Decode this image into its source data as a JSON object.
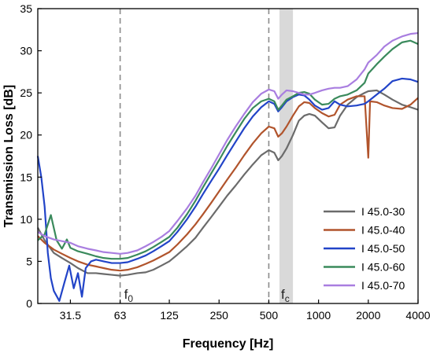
{
  "chart_data": {
    "type": "line",
    "title": "",
    "xlabel": "Frequency [Hz]",
    "ylabel": "Transmission Loss [dB]",
    "xscale": "log2",
    "xlim": [
      20,
      4000
    ],
    "ylim": [
      0,
      35
    ],
    "xticks": [
      {
        "value": 31.5,
        "label": "31.5"
      },
      {
        "value": 63,
        "label": "63"
      },
      {
        "value": 125,
        "label": "125"
      },
      {
        "value": 250,
        "label": "250"
      },
      {
        "value": 500,
        "label": "500"
      },
      {
        "value": 1000,
        "label": "1000"
      },
      {
        "value": 2000,
        "label": "2000"
      },
      {
        "value": 4000,
        "label": "4000"
      }
    ],
    "yticks": [
      0,
      5,
      10,
      15,
      20,
      25,
      30,
      35
    ],
    "grid": false,
    "legend_position": "lower-right",
    "annotations": {
      "f0": {
        "label": "f",
        "sub": "0",
        "x": 63
      },
      "fc": {
        "label": "f",
        "sub": "c",
        "x_range": [
          580,
          700
        ]
      },
      "dashed_line_x": [
        63,
        500
      ],
      "shaded_band_x": [
        580,
        700
      ],
      "shaded_color": "#d9d9d9"
    },
    "series": [
      {
        "name": "I 45.0-30",
        "color": "#6b6b6b",
        "points": [
          [
            20,
            9.0
          ],
          [
            22,
            7.5
          ],
          [
            25,
            6.0
          ],
          [
            28,
            5.4
          ],
          [
            31.5,
            4.8
          ],
          [
            35,
            4.2
          ],
          [
            40,
            3.6
          ],
          [
            45,
            3.6
          ],
          [
            50,
            3.5
          ],
          [
            56,
            3.4
          ],
          [
            63,
            3.3
          ],
          [
            70,
            3.4
          ],
          [
            80,
            3.6
          ],
          [
            90,
            3.7
          ],
          [
            100,
            4.0
          ],
          [
            112,
            4.5
          ],
          [
            125,
            5.0
          ],
          [
            140,
            5.8
          ],
          [
            160,
            6.8
          ],
          [
            180,
            7.8
          ],
          [
            200,
            9.0
          ],
          [
            225,
            10.3
          ],
          [
            250,
            11.5
          ],
          [
            280,
            12.8
          ],
          [
            315,
            14.0
          ],
          [
            355,
            15.3
          ],
          [
            400,
            16.5
          ],
          [
            450,
            17.6
          ],
          [
            500,
            18.2
          ],
          [
            540,
            17.9
          ],
          [
            570,
            17.0
          ],
          [
            600,
            17.5
          ],
          [
            640,
            18.4
          ],
          [
            700,
            20.0
          ],
          [
            760,
            21.7
          ],
          [
            820,
            22.3
          ],
          [
            880,
            22.5
          ],
          [
            950,
            22.3
          ],
          [
            1050,
            21.5
          ],
          [
            1150,
            20.8
          ],
          [
            1250,
            20.9
          ],
          [
            1350,
            22.3
          ],
          [
            1500,
            23.6
          ],
          [
            1700,
            24.5
          ],
          [
            1900,
            25.0
          ],
          [
            2000,
            25.2
          ],
          [
            2250,
            25.3
          ],
          [
            2500,
            24.8
          ],
          [
            2800,
            24.2
          ],
          [
            3200,
            23.6
          ],
          [
            3600,
            23.3
          ],
          [
            4000,
            23.0
          ]
        ]
      },
      {
        "name": "I 45.0-40",
        "color": "#b1542c",
        "points": [
          [
            20,
            8.0
          ],
          [
            22,
            7.2
          ],
          [
            25,
            6.4
          ],
          [
            28,
            5.9
          ],
          [
            31.5,
            5.4
          ],
          [
            35,
            5.0
          ],
          [
            40,
            4.6
          ],
          [
            45,
            4.4
          ],
          [
            50,
            4.2
          ],
          [
            56,
            4.0
          ],
          [
            63,
            3.9
          ],
          [
            70,
            4.0
          ],
          [
            80,
            4.3
          ],
          [
            90,
            4.7
          ],
          [
            100,
            5.1
          ],
          [
            112,
            5.6
          ],
          [
            125,
            6.1
          ],
          [
            140,
            7.0
          ],
          [
            160,
            8.2
          ],
          [
            180,
            9.4
          ],
          [
            200,
            10.6
          ],
          [
            225,
            12.0
          ],
          [
            250,
            13.3
          ],
          [
            280,
            14.7
          ],
          [
            315,
            16.1
          ],
          [
            355,
            17.6
          ],
          [
            400,
            19.0
          ],
          [
            450,
            20.2
          ],
          [
            500,
            21.0
          ],
          [
            540,
            20.8
          ],
          [
            570,
            19.8
          ],
          [
            600,
            20.2
          ],
          [
            640,
            21.0
          ],
          [
            700,
            22.3
          ],
          [
            760,
            23.4
          ],
          [
            820,
            23.9
          ],
          [
            880,
            23.8
          ],
          [
            950,
            23.2
          ],
          [
            1050,
            22.6
          ],
          [
            1150,
            22.2
          ],
          [
            1250,
            22.4
          ],
          [
            1350,
            23.6
          ],
          [
            1500,
            24.2
          ],
          [
            1700,
            24.6
          ],
          [
            1900,
            24.6
          ],
          [
            2000,
            17.3
          ],
          [
            2050,
            24.0
          ],
          [
            2250,
            23.9
          ],
          [
            2500,
            23.5
          ],
          [
            2800,
            23.2
          ],
          [
            3200,
            23.1
          ],
          [
            3600,
            23.6
          ],
          [
            4000,
            24.4
          ]
        ]
      },
      {
        "name": "I 45.0-50",
        "color": "#2244c8",
        "points": [
          [
            20,
            17.5
          ],
          [
            21,
            15.0
          ],
          [
            22,
            11.5
          ],
          [
            23,
            6.0
          ],
          [
            24,
            3.0
          ],
          [
            25,
            1.5
          ],
          [
            27,
            0.3
          ],
          [
            29,
            2.5
          ],
          [
            31,
            4.5
          ],
          [
            33,
            1.8
          ],
          [
            35,
            3.6
          ],
          [
            37,
            0.8
          ],
          [
            39,
            4.2
          ],
          [
            42,
            5.0
          ],
          [
            45,
            5.2
          ],
          [
            50,
            5.0
          ],
          [
            56,
            4.8
          ],
          [
            63,
            4.8
          ],
          [
            70,
            4.9
          ],
          [
            80,
            5.3
          ],
          [
            90,
            5.7
          ],
          [
            100,
            6.2
          ],
          [
            112,
            6.8
          ],
          [
            125,
            7.4
          ],
          [
            140,
            8.5
          ],
          [
            160,
            10.0
          ],
          [
            180,
            11.5
          ],
          [
            200,
            13.0
          ],
          [
            225,
            14.6
          ],
          [
            250,
            16.0
          ],
          [
            280,
            17.6
          ],
          [
            315,
            19.2
          ],
          [
            355,
            20.8
          ],
          [
            400,
            22.2
          ],
          [
            450,
            23.3
          ],
          [
            500,
            24.0
          ],
          [
            540,
            23.7
          ],
          [
            570,
            22.8
          ],
          [
            600,
            23.3
          ],
          [
            640,
            24.0
          ],
          [
            700,
            24.5
          ],
          [
            760,
            24.8
          ],
          [
            820,
            24.7
          ],
          [
            880,
            24.2
          ],
          [
            950,
            23.5
          ],
          [
            1050,
            23.0
          ],
          [
            1150,
            23.2
          ],
          [
            1250,
            24.0
          ],
          [
            1350,
            23.6
          ],
          [
            1500,
            23.4
          ],
          [
            1700,
            23.5
          ],
          [
            1900,
            23.7
          ],
          [
            2000,
            24.0
          ],
          [
            2250,
            24.8
          ],
          [
            2500,
            25.5
          ],
          [
            2800,
            26.4
          ],
          [
            3200,
            26.7
          ],
          [
            3600,
            26.6
          ],
          [
            4000,
            26.3
          ]
        ]
      },
      {
        "name": "I 45.0-60",
        "color": "#3a8a5c",
        "points": [
          [
            20,
            7.5
          ],
          [
            22,
            8.2
          ],
          [
            24,
            10.5
          ],
          [
            26,
            7.5
          ],
          [
            28,
            6.5
          ],
          [
            30,
            7.6
          ],
          [
            31.5,
            6.6
          ],
          [
            35,
            6.2
          ],
          [
            40,
            5.9
          ],
          [
            45,
            5.6
          ],
          [
            50,
            5.4
          ],
          [
            56,
            5.3
          ],
          [
            63,
            5.3
          ],
          [
            70,
            5.4
          ],
          [
            80,
            5.8
          ],
          [
            90,
            6.2
          ],
          [
            100,
            6.7
          ],
          [
            112,
            7.3
          ],
          [
            125,
            7.9
          ],
          [
            140,
            9.0
          ],
          [
            160,
            10.6
          ],
          [
            180,
            12.2
          ],
          [
            200,
            13.8
          ],
          [
            225,
            15.5
          ],
          [
            250,
            17.0
          ],
          [
            280,
            18.7
          ],
          [
            315,
            20.3
          ],
          [
            355,
            21.9
          ],
          [
            400,
            23.2
          ],
          [
            450,
            24.0
          ],
          [
            500,
            24.3
          ],
          [
            540,
            24.0
          ],
          [
            570,
            23.0
          ],
          [
            600,
            23.5
          ],
          [
            640,
            24.2
          ],
          [
            700,
            24.6
          ],
          [
            760,
            25.0
          ],
          [
            820,
            25.1
          ],
          [
            880,
            24.9
          ],
          [
            950,
            24.2
          ],
          [
            1050,
            23.6
          ],
          [
            1150,
            23.7
          ],
          [
            1250,
            24.3
          ],
          [
            1350,
            24.6
          ],
          [
            1500,
            24.8
          ],
          [
            1700,
            25.3
          ],
          [
            1900,
            26.2
          ],
          [
            2000,
            27.3
          ],
          [
            2250,
            28.4
          ],
          [
            2500,
            29.3
          ],
          [
            2800,
            30.2
          ],
          [
            3200,
            31.0
          ],
          [
            3600,
            31.2
          ],
          [
            4000,
            30.8
          ]
        ]
      },
      {
        "name": "I 45.0-70",
        "color": "#a97ee0",
        "points": [
          [
            20,
            8.5
          ],
          [
            22,
            8.0
          ],
          [
            25,
            7.6
          ],
          [
            28,
            7.4
          ],
          [
            31.5,
            7.2
          ],
          [
            35,
            6.8
          ],
          [
            40,
            6.5
          ],
          [
            45,
            6.3
          ],
          [
            50,
            6.1
          ],
          [
            56,
            6.0
          ],
          [
            63,
            5.9
          ],
          [
            70,
            6.0
          ],
          [
            80,
            6.3
          ],
          [
            90,
            6.8
          ],
          [
            100,
            7.3
          ],
          [
            112,
            7.9
          ],
          [
            125,
            8.6
          ],
          [
            140,
            9.8
          ],
          [
            160,
            11.3
          ],
          [
            180,
            12.8
          ],
          [
            200,
            14.4
          ],
          [
            225,
            16.1
          ],
          [
            250,
            17.7
          ],
          [
            280,
            19.4
          ],
          [
            315,
            21.0
          ],
          [
            355,
            22.5
          ],
          [
            400,
            23.9
          ],
          [
            450,
            24.9
          ],
          [
            500,
            25.4
          ],
          [
            540,
            25.2
          ],
          [
            570,
            24.3
          ],
          [
            600,
            24.8
          ],
          [
            640,
            25.3
          ],
          [
            700,
            25.2
          ],
          [
            760,
            25.0
          ],
          [
            820,
            24.8
          ],
          [
            880,
            24.8
          ],
          [
            950,
            25.0
          ],
          [
            1050,
            25.3
          ],
          [
            1150,
            25.5
          ],
          [
            1250,
            25.6
          ],
          [
            1350,
            25.6
          ],
          [
            1500,
            25.8
          ],
          [
            1700,
            26.6
          ],
          [
            1900,
            27.8
          ],
          [
            2000,
            28.6
          ],
          [
            2250,
            29.5
          ],
          [
            2500,
            30.5
          ],
          [
            2800,
            31.2
          ],
          [
            3200,
            31.7
          ],
          [
            3600,
            32.0
          ],
          [
            4000,
            32.1
          ]
        ]
      }
    ]
  }
}
